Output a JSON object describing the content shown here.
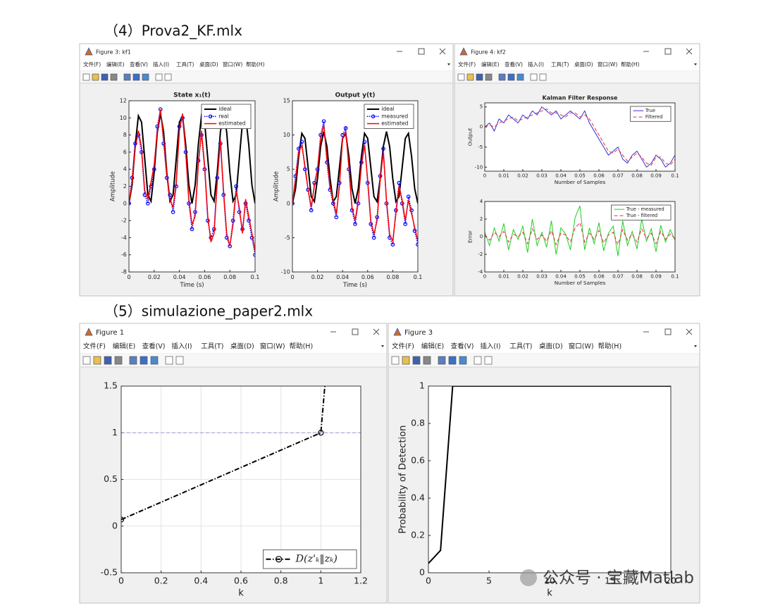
{
  "headings": [
    "（4）Prova2_KF.mlx",
    "（5）simulazione_paper2.mlx"
  ],
  "menu": [
    "文件(F)",
    "编辑(E)",
    "查看(V)",
    "插入(I)",
    "工具(T)",
    "桌面(D)",
    "窗口(W)",
    "帮助(H)"
  ],
  "windows": [
    {
      "title": "Figure 3: kf1"
    },
    {
      "title": "Figure 4: kf2"
    },
    {
      "title": "Figure 1"
    },
    {
      "title": "Figure 3"
    }
  ],
  "watermark": "公众号 · 宝藏Matlab",
  "chart_data": [
    {
      "type": "line",
      "title": "State x₁(t)",
      "x_label": "Time (s)",
      "y_label": "Amplitude",
      "x": [
        0,
        0.0025,
        0.005,
        0.0075,
        0.01,
        0.0125,
        0.015,
        0.0175,
        0.02,
        0.0225,
        0.025,
        0.0275,
        0.03,
        0.0325,
        0.035,
        0.0375,
        0.04,
        0.0425,
        0.045,
        0.0475,
        0.05,
        0.0525,
        0.055,
        0.0575,
        0.06,
        0.0625,
        0.065,
        0.0675,
        0.07,
        0.0725,
        0.075,
        0.0775,
        0.08,
        0.0825,
        0.085,
        0.0875,
        0.09,
        0.0925,
        0.095,
        0.0975,
        0.1
      ],
      "xlim": [
        0,
        0.1
      ],
      "xticks": [
        0,
        0.02,
        0.04,
        0.06,
        0.08,
        0.1
      ],
      "ylim": [
        -8,
        12
      ],
      "yticks": [
        -8,
        -6,
        -4,
        -2,
        0,
        2,
        4,
        6,
        8,
        10,
        12
      ],
      "grid": false,
      "legend": "upper right",
      "series": [
        {
          "name": "ideal",
          "color": "#000000",
          "line_style": "-",
          "line_width": 2,
          "values": [
            0,
            2.16,
            6.87,
            10.24,
            9.5,
            5.25,
            1,
            0.26,
            3.63,
            8.34,
            10.5,
            8.34,
            3.63,
            0.26,
            1,
            5.25,
            9.5,
            10.24,
            6.87,
            2.16,
            0,
            2.16,
            6.87,
            10.24,
            9.5,
            5.25,
            1,
            0.26,
            3.63,
            8.34,
            10.5,
            8.34,
            3.63,
            0.26,
            1,
            5.25,
            9.5,
            10.24,
            6.87,
            2.16,
            0
          ]
        },
        {
          "name": "real",
          "color": "#0000ff",
          "line_style": ":",
          "line_width": 1.5,
          "marker": "o",
          "values": [
            0,
            3,
            7,
            8,
            6,
            1,
            0,
            2,
            4,
            9,
            11,
            7,
            3,
            1,
            -1,
            2,
            9,
            10,
            6,
            0,
            -3,
            -1,
            5,
            8,
            4,
            -2,
            -4,
            -3,
            3,
            7,
            1,
            -4,
            -5,
            -2,
            2,
            -1,
            -3,
            0,
            -2,
            -4,
            -6
          ]
        },
        {
          "name": "estimated",
          "color": "#ff0000",
          "line_style": "-",
          "line_width": 1.5,
          "values": [
            0,
            2.5,
            6.5,
            8.5,
            6.5,
            1.5,
            0.5,
            2.5,
            4.5,
            8.5,
            11,
            7.5,
            3.5,
            0.5,
            -0.5,
            2.5,
            8.5,
            10.5,
            6,
            0.5,
            -2.5,
            -1.5,
            4.5,
            8.5,
            4.5,
            -1.5,
            -4.5,
            -3.5,
            2.5,
            7.5,
            1.5,
            -3.5,
            -5,
            -2.5,
            1.5,
            -0.5,
            -3.5,
            0.5,
            -1.5,
            -3.5,
            -5.5
          ]
        }
      ]
    },
    {
      "type": "line",
      "title": "Output y(t)",
      "x_label": "Time (s)",
      "y_label": "Amplitude",
      "x": [
        0,
        0.0025,
        0.005,
        0.0075,
        0.01,
        0.0125,
        0.015,
        0.0175,
        0.02,
        0.0225,
        0.025,
        0.0275,
        0.03,
        0.0325,
        0.035,
        0.0375,
        0.04,
        0.0425,
        0.045,
        0.0475,
        0.05,
        0.0525,
        0.055,
        0.0575,
        0.06,
        0.0625,
        0.065,
        0.0675,
        0.07,
        0.0725,
        0.075,
        0.0775,
        0.08,
        0.0825,
        0.085,
        0.0875,
        0.09,
        0.0925,
        0.095,
        0.0975,
        0.1
      ],
      "xlim": [
        0,
        0.1
      ],
      "xticks": [
        0,
        0.02,
        0.04,
        0.06,
        0.08,
        0.1
      ],
      "ylim": [
        -10,
        15
      ],
      "yticks": [
        -10,
        -5,
        0,
        5,
        10,
        15
      ],
      "grid": false,
      "legend": "upper right",
      "series": [
        {
          "name": "ideal",
          "color": "#000000",
          "line_style": "-",
          "line_width": 2,
          "values": [
            0,
            2.16,
            6.87,
            10.24,
            9.5,
            5.25,
            1,
            0.26,
            3.63,
            8.34,
            10.5,
            8.34,
            3.63,
            0.26,
            1,
            5.25,
            9.5,
            10.24,
            6.87,
            2.16,
            0,
            2.16,
            6.87,
            10.24,
            9.5,
            5.25,
            1,
            0.26,
            3.63,
            8.34,
            10.5,
            8.34,
            3.63,
            0.26,
            1,
            5.25,
            9.5,
            10.24,
            6.87,
            2.16,
            0
          ]
        },
        {
          "name": "measured",
          "color": "#0000ff",
          "line_style": ":",
          "line_width": 1.5,
          "marker": "o",
          "values": [
            0,
            4,
            8,
            9,
            5,
            2,
            -1,
            3,
            5,
            10,
            12,
            6,
            2,
            0,
            -2,
            3,
            10,
            11,
            5,
            -1,
            -3,
            0,
            6,
            9,
            3,
            -3,
            -5,
            -2,
            4,
            8,
            0,
            -5,
            -6,
            -1,
            3,
            0,
            -3,
            1,
            -1,
            -4,
            -6
          ]
        },
        {
          "name": "estimated",
          "color": "#ff0000",
          "line_style": "-",
          "line_width": 1.5,
          "values": [
            0,
            3.5,
            7.5,
            8.5,
            5.5,
            2,
            -0.5,
            2.5,
            5,
            9.5,
            11.5,
            6.5,
            2.5,
            0.5,
            -1.5,
            2.5,
            9.5,
            10.5,
            5.5,
            -0.5,
            -2.5,
            0.5,
            5.5,
            8.5,
            3.5,
            -2.5,
            -4.5,
            -2.5,
            3.5,
            7.5,
            0.5,
            -4.5,
            -5.5,
            -1.5,
            2.5,
            0.5,
            -2.5,
            0.5,
            -1.5,
            -3.5,
            -5.5
          ]
        }
      ]
    },
    {
      "type": "line",
      "title": "Kalman Filter Response",
      "x_label": "Number of Samples",
      "y_label": "Output",
      "x": [
        0,
        0.0025,
        0.005,
        0.0075,
        0.01,
        0.0125,
        0.015,
        0.0175,
        0.02,
        0.0225,
        0.025,
        0.0275,
        0.03,
        0.0325,
        0.035,
        0.0375,
        0.04,
        0.0425,
        0.045,
        0.0475,
        0.05,
        0.0525,
        0.055,
        0.0575,
        0.06,
        0.0625,
        0.065,
        0.0675,
        0.07,
        0.0725,
        0.075,
        0.0775,
        0.08,
        0.0825,
        0.085,
        0.0875,
        0.09,
        0.0925,
        0.095,
        0.0975,
        0.1
      ],
      "xlim": [
        0,
        0.1
      ],
      "xticks": [
        0,
        0.01,
        0.02,
        0.03,
        0.04,
        0.05,
        0.06,
        0.07,
        0.08,
        0.09,
        0.1
      ],
      "ylim": [
        -11,
        6
      ],
      "yticks": [
        -10,
        -5,
        0,
        5
      ],
      "grid": false,
      "legend": "upper right",
      "series": [
        {
          "name": "True",
          "color": "#3333cc",
          "line_style": "-",
          "line_width": 1,
          "values": [
            0,
            1,
            -1,
            2,
            1,
            3,
            2,
            1,
            3,
            2,
            4,
            3,
            5,
            4,
            3,
            4,
            2,
            3,
            4,
            3,
            2,
            4,
            1,
            -1,
            -3,
            -5,
            -7,
            -6,
            -5,
            -8,
            -9,
            -7,
            -6,
            -8,
            -10,
            -9,
            -7,
            -8,
            -10,
            -9,
            -7
          ]
        },
        {
          "name": "Filtered",
          "color": "#e0304a",
          "line_style": "--",
          "line_width": 1,
          "values": [
            0,
            0.5,
            0,
            1,
            1.5,
            2,
            2.5,
            1.5,
            2,
            2.5,
            3,
            3.5,
            4,
            4.5,
            3.5,
            3.5,
            3,
            2.5,
            3.5,
            3.5,
            2.5,
            3,
            2,
            0,
            -2,
            -4,
            -6,
            -6.5,
            -5.5,
            -7,
            -8.5,
            -7.5,
            -6.5,
            -7.5,
            -9,
            -9.5,
            -7.5,
            -7.5,
            -9,
            -9.5,
            -8
          ]
        }
      ]
    },
    {
      "type": "line",
      "x_label": "Number of Samples",
      "y_label": "Error",
      "x": [
        0,
        0.0025,
        0.005,
        0.0075,
        0.01,
        0.0125,
        0.015,
        0.0175,
        0.02,
        0.0225,
        0.025,
        0.0275,
        0.03,
        0.0325,
        0.035,
        0.0375,
        0.04,
        0.0425,
        0.045,
        0.0475,
        0.05,
        0.0525,
        0.055,
        0.0575,
        0.06,
        0.0625,
        0.065,
        0.0675,
        0.07,
        0.0725,
        0.075,
        0.0775,
        0.08,
        0.0825,
        0.085,
        0.0875,
        0.09,
        0.0925,
        0.095,
        0.0975,
        0.1
      ],
      "xlim": [
        0,
        0.1
      ],
      "xticks": [
        0,
        0.01,
        0.02,
        0.03,
        0.04,
        0.05,
        0.06,
        0.07,
        0.08,
        0.09,
        0.1
      ],
      "ylim": [
        -4,
        4
      ],
      "yticks": [
        -4,
        -2,
        0,
        2,
        4
      ],
      "grid": false,
      "legend": "upper right",
      "series": [
        {
          "name": "True - measured",
          "color": "#22cc22",
          "line_style": "-",
          "line_width": 1,
          "values": [
            0.5,
            -1,
            1,
            -0.5,
            1.5,
            -1.5,
            0.8,
            -0.3,
            1.2,
            -1.8,
            2,
            -1,
            0.5,
            -1.2,
            1.8,
            -2,
            1,
            0.3,
            -1.5,
            2.2,
            3.5,
            -1.5,
            1,
            -0.8,
            1.6,
            -1.6,
            0.4,
            1.2,
            -2.2,
            1.8,
            -1,
            0.6,
            -1.4,
            2,
            -0.5,
            0.9,
            -1.7,
            1.3,
            -0.6,
            0.8,
            -0.4
          ]
        },
        {
          "name": "True - filtered",
          "color": "#e0304a",
          "line_style": "--",
          "line_width": 1,
          "values": [
            0.2,
            -0.4,
            0.5,
            0,
            0.6,
            -0.6,
            0.3,
            0,
            0.5,
            -0.8,
            0.9,
            -0.3,
            0.2,
            -0.5,
            0.7,
            -0.9,
            0.4,
            0.2,
            -0.6,
            1,
            1.6,
            -0.6,
            0.4,
            -0.3,
            0.7,
            -0.7,
            0.2,
            0.5,
            -0.9,
            0.8,
            -0.4,
            0.3,
            -0.6,
            0.9,
            -0.2,
            0.4,
            -0.8,
            0.6,
            -0.3,
            0.3,
            -0.2
          ]
        }
      ]
    },
    {
      "type": "line",
      "x_label": "k",
      "x": [
        0,
        1,
        1.02
      ],
      "xlim": [
        0,
        1.2
      ],
      "xticks": [
        0,
        0.2,
        0.4,
        0.6,
        0.8,
        1,
        1.2
      ],
      "ylim": [
        -0.5,
        1.5
      ],
      "yticks": [
        -0.5,
        0,
        0.5,
        1,
        1.5
      ],
      "grid": true,
      "legend": "lower right",
      "reference_line": {
        "value": 1,
        "color": "#9a9ad8"
      },
      "series": [
        {
          "name": "D(z'ₖ‖zₖ)",
          "color": "#000000",
          "line_style": "-.",
          "line_width": 2,
          "marker": "o",
          "values": [
            0.07,
            1,
            1.5
          ]
        }
      ]
    },
    {
      "type": "line",
      "x_label": "k",
      "y_label": "Probability of Detection",
      "x": [
        0,
        1,
        2,
        3,
        4,
        5,
        6,
        7,
        8,
        9,
        10,
        11,
        12,
        13,
        14,
        15,
        16,
        17,
        18,
        19,
        20
      ],
      "xlim": [
        0,
        20
      ],
      "xticks": [
        0,
        5,
        10,
        15,
        20
      ],
      "ylim": [
        0,
        1
      ],
      "yticks": [
        0,
        0.2,
        0.4,
        0.6,
        0.8,
        1
      ],
      "grid": false,
      "series": [
        {
          "color": "#000000",
          "line_style": "-",
          "line_width": 2,
          "values": [
            0.05,
            0.12,
            1,
            1,
            1,
            1,
            1,
            1,
            1,
            1,
            1,
            1,
            1,
            1,
            1,
            1,
            1,
            1,
            1,
            1,
            1
          ]
        }
      ]
    }
  ]
}
